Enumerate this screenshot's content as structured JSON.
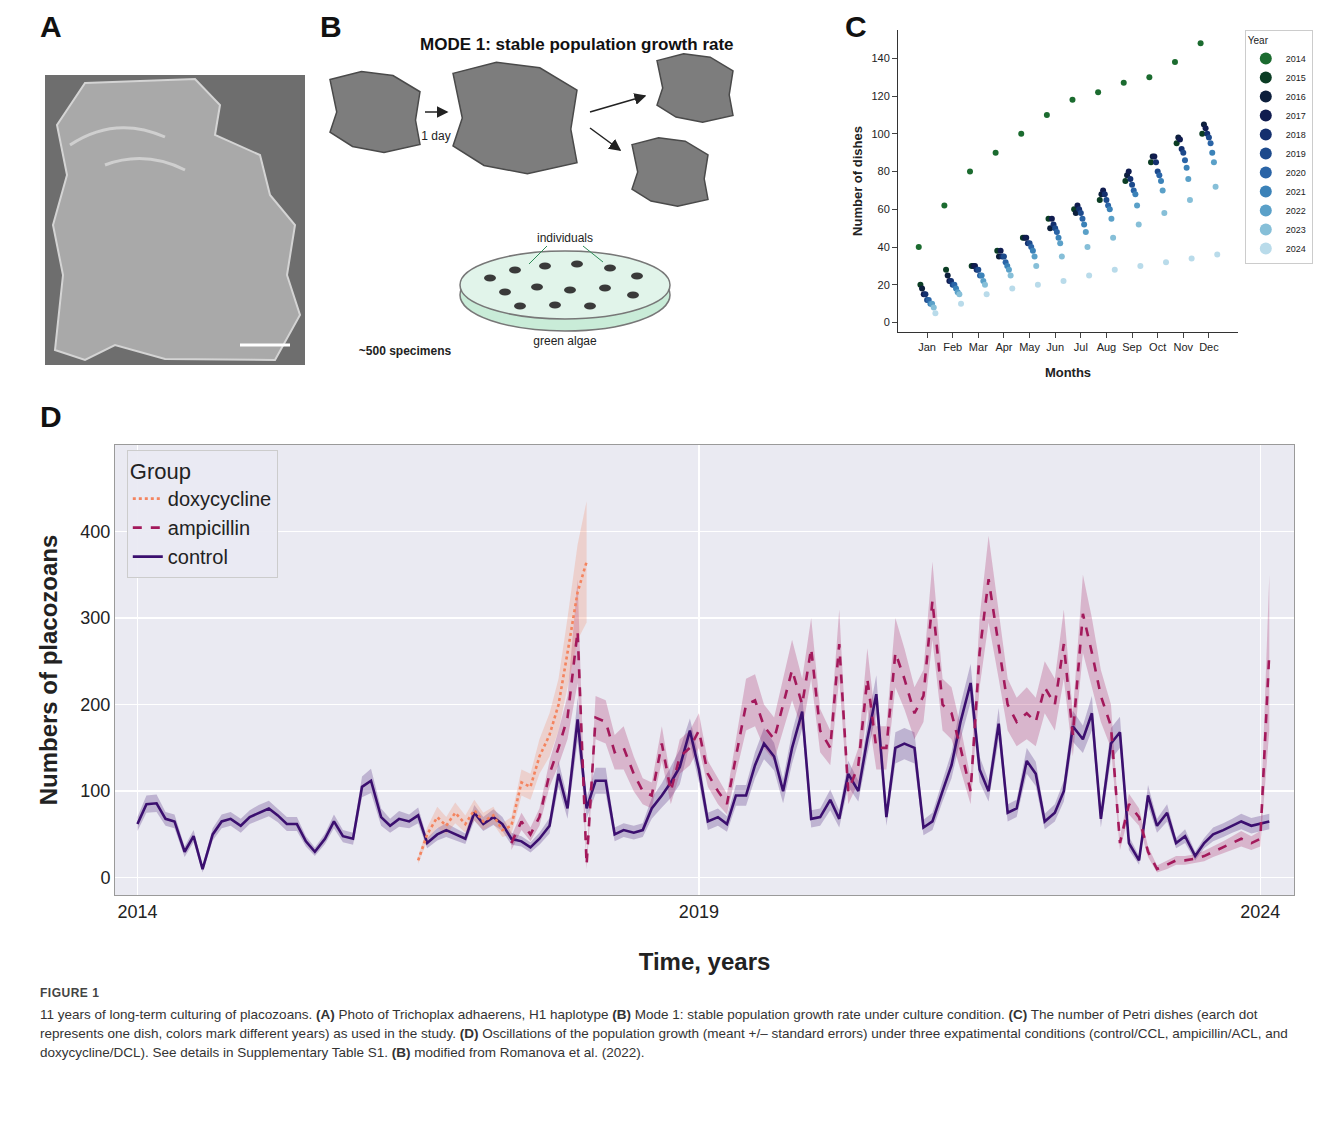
{
  "panel_labels": [
    "A",
    "B",
    "C",
    "D"
  ],
  "panel_b": {
    "title": "MODE 1: stable population growth rate",
    "arrow_label": "1 day",
    "dish_label": "individuals",
    "algae_label": "green algae",
    "count_label": "~500 specimens"
  },
  "chart_data": [
    {
      "type": "scatter",
      "x_label": "Months",
      "y_label": "Number of dishes",
      "legend_title": "Year",
      "legend": "right",
      "grid": false,
      "marker": "circle",
      "categories": [
        "Jan",
        "Feb",
        "Mar",
        "Apr",
        "May",
        "Jun",
        "Jul",
        "Aug",
        "Sep",
        "Oct",
        "Nov",
        "Dec"
      ],
      "ylim": [
        -5,
        155
      ],
      "yticks": [
        0,
        20,
        40,
        60,
        80,
        100,
        120,
        140
      ],
      "series": [
        {
          "name": "2014",
          "color": "#1b6b2f",
          "values": [
            40,
            62,
            80,
            90,
            100,
            110,
            118,
            122,
            127,
            130,
            138,
            148
          ]
        },
        {
          "name": "2015",
          "color": "#0b3d24",
          "values": [
            20,
            28,
            30,
            38,
            45,
            55,
            60,
            65,
            75,
            85,
            95,
            100
          ]
        },
        {
          "name": "2016",
          "color": "#0d1f3c",
          "values": [
            18,
            25,
            30,
            35,
            45,
            50,
            58,
            68,
            78,
            88,
            98,
            105
          ]
        },
        {
          "name": "2017",
          "color": "#101c4f",
          "values": [
            15,
            22,
            30,
            38,
            45,
            55,
            62,
            70,
            80,
            88,
            97,
            103
          ]
        },
        {
          "name": "2018",
          "color": "#14306e",
          "values": [
            15,
            22,
            28,
            35,
            42,
            52,
            60,
            68,
            76,
            85,
            92,
            100
          ]
        },
        {
          "name": "2019",
          "color": "#1d4a8c",
          "values": [
            12,
            20,
            28,
            35,
            42,
            50,
            58,
            65,
            73,
            80,
            90,
            98
          ]
        },
        {
          "name": "2020",
          "color": "#2a64a6",
          "values": [
            12,
            20,
            25,
            32,
            40,
            48,
            55,
            62,
            70,
            78,
            86,
            95
          ]
        },
        {
          "name": "2021",
          "color": "#3b82b8",
          "values": [
            10,
            18,
            25,
            30,
            38,
            45,
            52,
            60,
            68,
            75,
            82,
            90
          ]
        },
        {
          "name": "2022",
          "color": "#5aa0c8",
          "values": [
            10,
            16,
            22,
            28,
            35,
            42,
            48,
            55,
            62,
            70,
            76,
            85
          ]
        },
        {
          "name": "2023",
          "color": "#86bfd8",
          "values": [
            8,
            15,
            20,
            25,
            30,
            35,
            40,
            45,
            52,
            58,
            65,
            72
          ]
        },
        {
          "name": "2024",
          "color": "#b9dbea",
          "values": [
            5,
            10,
            15,
            18,
            20,
            22,
            25,
            28,
            30,
            32,
            34,
            36
          ]
        }
      ]
    },
    {
      "type": "line",
      "x_label": "Time, years",
      "y_label": "Numbers of placozoans",
      "legend_title": "Group",
      "legend": "upper left",
      "grid": true,
      "xlim": [
        2013.8,
        2024.3
      ],
      "xticks": [
        2014,
        2019,
        2024
      ],
      "ylim": [
        -20,
        500
      ],
      "yticks": [
        0,
        100,
        200,
        300,
        400
      ],
      "series": [
        {
          "name": "control",
          "color": "#3b0f6f",
          "line_style": "solid",
          "x": [
            2014.0,
            2014.08,
            2014.17,
            2014.25,
            2014.33,
            2014.42,
            2014.5,
            2014.58,
            2014.67,
            2014.75,
            2014.83,
            2014.92,
            2015.0,
            2015.08,
            2015.17,
            2015.25,
            2015.33,
            2015.42,
            2015.5,
            2015.58,
            2015.67,
            2015.75,
            2015.83,
            2015.92,
            2016.0,
            2016.08,
            2016.17,
            2016.25,
            2016.33,
            2016.42,
            2016.5,
            2016.58,
            2016.67,
            2016.75,
            2016.83,
            2016.92,
            2017.0,
            2017.08,
            2017.17,
            2017.25,
            2017.33,
            2017.42,
            2017.5,
            2017.58,
            2017.67,
            2017.75,
            2017.83,
            2017.92,
            2018.0,
            2018.08,
            2018.17,
            2018.25,
            2018.33,
            2018.42,
            2018.5,
            2018.58,
            2018.67,
            2018.75,
            2018.83,
            2018.92,
            2019.0,
            2019.08,
            2019.17,
            2019.25,
            2019.33,
            2019.42,
            2019.5,
            2019.58,
            2019.67,
            2019.75,
            2019.83,
            2019.92,
            2020.0,
            2020.08,
            2020.17,
            2020.25,
            2020.33,
            2020.42,
            2020.5,
            2020.58,
            2020.67,
            2020.75,
            2020.83,
            2020.92,
            2021.0,
            2021.08,
            2021.17,
            2021.25,
            2021.33,
            2021.42,
            2021.5,
            2021.58,
            2021.67,
            2021.75,
            2021.83,
            2021.92,
            2022.0,
            2022.08,
            2022.17,
            2022.25,
            2022.33,
            2022.42,
            2022.5,
            2022.58,
            2022.67,
            2022.75,
            2022.83,
            2022.92,
            2023.0,
            2023.08,
            2023.17,
            2023.25,
            2023.33,
            2023.42,
            2023.5,
            2023.58,
            2023.67,
            2023.75,
            2023.83,
            2023.92,
            2024.08
          ],
          "values": [
            62,
            85,
            86,
            68,
            65,
            30,
            48,
            10,
            50,
            65,
            68,
            60,
            70,
            75,
            80,
            72,
            62,
            62,
            42,
            30,
            45,
            65,
            48,
            45,
            105,
            112,
            70,
            60,
            68,
            65,
            72,
            40,
            50,
            55,
            50,
            45,
            75,
            62,
            70,
            62,
            45,
            42,
            35,
            45,
            60,
            120,
            80,
            183,
            80,
            112,
            112,
            50,
            55,
            52,
            55,
            80,
            95,
            110,
            128,
            170,
            125,
            65,
            70,
            62,
            95,
            95,
            130,
            155,
            140,
            100,
            150,
            192,
            68,
            70,
            90,
            68,
            120,
            100,
            160,
            212,
            70,
            150,
            155,
            150,
            58,
            65,
            100,
            130,
            180,
            225,
            125,
            100,
            178,
            75,
            80,
            135,
            120,
            65,
            75,
            100,
            175,
            160,
            190,
            68,
            155,
            168,
            40,
            20,
            95,
            60,
            75,
            40,
            48,
            25,
            40,
            50,
            55,
            60,
            65,
            60,
            65
          ],
          "error": [
            8,
            10,
            10,
            8,
            8,
            6,
            7,
            4,
            7,
            8,
            8,
            8,
            8,
            9,
            9,
            8,
            8,
            8,
            6,
            5,
            6,
            8,
            7,
            7,
            12,
            14,
            10,
            8,
            9,
            8,
            9,
            6,
            7,
            8,
            7,
            6,
            9,
            8,
            9,
            8,
            7,
            6,
            6,
            7,
            9,
            15,
            12,
            25,
            12,
            15,
            15,
            8,
            8,
            8,
            8,
            12,
            14,
            18,
            20,
            14,
            15,
            10,
            10,
            9,
            12,
            12,
            15,
            18,
            16,
            14,
            18,
            20,
            10,
            10,
            12,
            10,
            15,
            12,
            18,
            22,
            10,
            18,
            18,
            18,
            9,
            10,
            12,
            15,
            20,
            22,
            15,
            12,
            18,
            10,
            10,
            15,
            14,
            9,
            10,
            12,
            18,
            16,
            20,
            10,
            18,
            18,
            8,
            5,
            12,
            8,
            10,
            6,
            8,
            5,
            6,
            8,
            8,
            8,
            9,
            9,
            9
          ]
        },
        {
          "name": "ampicillin",
          "color": "#a3195b",
          "line_style": "dash",
          "x": [
            2017.33,
            2017.42,
            2017.5,
            2017.58,
            2017.67,
            2017.75,
            2017.83,
            2017.92,
            2018.0,
            2018.08,
            2018.17,
            2018.25,
            2018.33,
            2018.42,
            2018.5,
            2018.58,
            2018.67,
            2018.75,
            2018.83,
            2018.92,
            2019.0,
            2019.08,
            2019.17,
            2019.25,
            2019.33,
            2019.42,
            2019.5,
            2019.58,
            2019.67,
            2019.75,
            2019.83,
            2019.92,
            2020.0,
            2020.08,
            2020.17,
            2020.25,
            2020.33,
            2020.42,
            2020.5,
            2020.58,
            2020.67,
            2020.75,
            2020.83,
            2020.92,
            2021.0,
            2021.08,
            2021.17,
            2021.25,
            2021.33,
            2021.42,
            2021.5,
            2021.58,
            2021.67,
            2021.75,
            2021.83,
            2021.92,
            2022.0,
            2022.08,
            2022.17,
            2022.25,
            2022.33,
            2022.42,
            2022.5,
            2022.58,
            2022.67,
            2022.75,
            2022.83,
            2022.92,
            2023.0,
            2023.08,
            2023.17,
            2023.25,
            2023.33,
            2023.42,
            2023.5,
            2023.58,
            2023.67,
            2023.75,
            2023.83,
            2023.92,
            2024.0,
            2024.08
          ],
          "values": [
            40,
            65,
            50,
            70,
            120,
            150,
            185,
            285,
            15,
            185,
            180,
            145,
            150,
            120,
            100,
            95,
            155,
            100,
            140,
            150,
            170,
            120,
            100,
            85,
            140,
            200,
            205,
            175,
            160,
            200,
            240,
            200,
            265,
            170,
            150,
            270,
            100,
            130,
            230,
            150,
            150,
            260,
            230,
            190,
            210,
            320,
            200,
            190,
            150,
            100,
            260,
            345,
            270,
            200,
            180,
            190,
            180,
            220,
            200,
            270,
            165,
            305,
            260,
            210,
            175,
            40,
            85,
            70,
            30,
            10,
            15,
            20,
            20,
            22,
            25,
            30,
            35,
            40,
            45,
            40,
            45,
            260
          ],
          "error": [
            8,
            10,
            8,
            10,
            15,
            20,
            25,
            60,
            5,
            25,
            25,
            20,
            25,
            20,
            15,
            15,
            20,
            15,
            20,
            20,
            20,
            15,
            15,
            12,
            20,
            30,
            30,
            25,
            25,
            30,
            35,
            30,
            35,
            25,
            20,
            40,
            15,
            20,
            35,
            25,
            25,
            40,
            35,
            30,
            30,
            45,
            30,
            30,
            25,
            15,
            40,
            50,
            40,
            30,
            28,
            30,
            28,
            30,
            30,
            40,
            25,
            45,
            40,
            30,
            25,
            8,
            12,
            10,
            6,
            4,
            5,
            5,
            5,
            5,
            6,
            6,
            7,
            8,
            9,
            8,
            9,
            90
          ]
        },
        {
          "name": "doxycycline",
          "color": "#f4845f",
          "line_style": "dot",
          "x": [
            2016.5,
            2016.58,
            2016.67,
            2016.75,
            2016.83,
            2016.92,
            2017.0,
            2017.08,
            2017.17,
            2017.25,
            2017.33,
            2017.42,
            2017.5,
            2017.58,
            2017.67,
            2017.75,
            2017.83,
            2017.92,
            2018.0
          ],
          "values": [
            20,
            50,
            70,
            60,
            75,
            62,
            78,
            65,
            72,
            55,
            60,
            110,
            105,
            140,
            165,
            200,
            260,
            330,
            365
          ],
          "error": [
            4,
            8,
            12,
            10,
            12,
            10,
            12,
            10,
            10,
            8,
            10,
            15,
            15,
            20,
            25,
            30,
            40,
            55,
            70
          ]
        }
      ]
    }
  ],
  "caption": {
    "label": "FIGURE 1",
    "text": "11 years of long-term culturing of placozoans. (A) Photo of Trichoplax adhaerens, H1 haplotype (B) Mode 1: stable population growth rate under culture condition. (C) The number of Petri dishes (earch dot represents one dish, colors mark different years) as used in the study. (D) Oscillations of the population growth (meant +/– standard errors) under three expatimental conditions (control/CCL, ampicillin/ACL, and doxycycline/DCL). See details in Supplementary Table S1. (B) modified from Romanova et al. (2022)."
  }
}
